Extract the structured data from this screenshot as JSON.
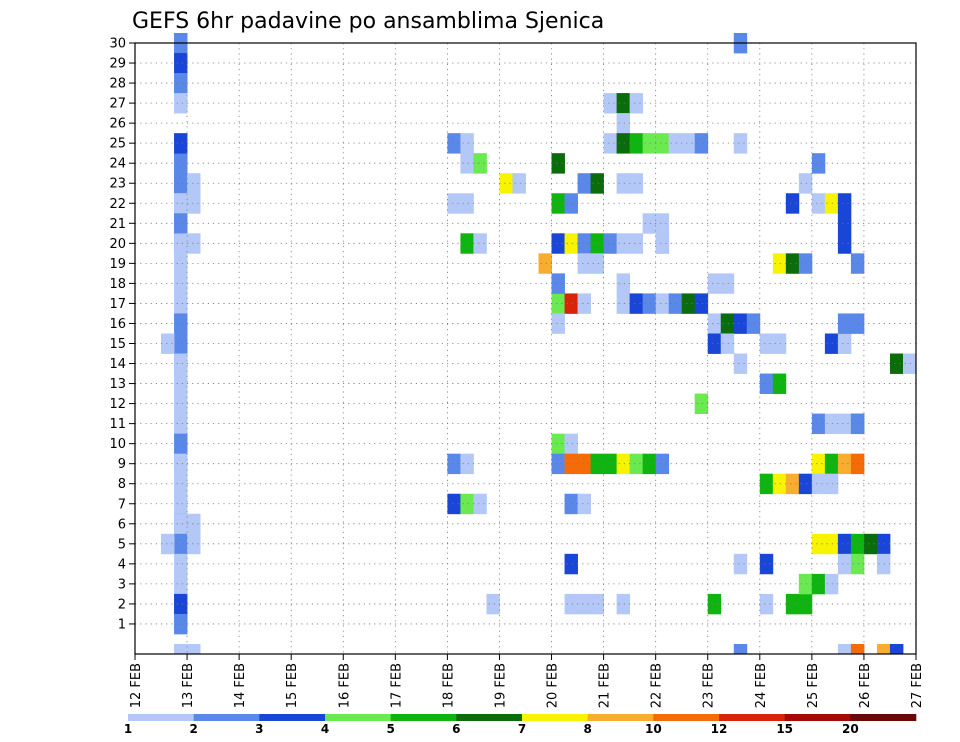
{
  "chart_data": {
    "type": "heatmap",
    "title": "GEFS 6hr padavine po ansamblima Sjenica",
    "xlabel": "",
    "ylabel": "",
    "x_ticks": [
      "12 FEB",
      "13 FEB",
      "14 FEB",
      "15 FEB",
      "16 FEB",
      "17 FEB",
      "18 FEB",
      "19 FEB",
      "20 FEB",
      "21 FEB",
      "22 FEB",
      "23 FEB",
      "24 FEB",
      "25 FEB",
      "26 FEB",
      "27 FEB"
    ],
    "y_ticks": [
      "1",
      "2",
      "3",
      "4",
      "5",
      "6",
      "7",
      "8",
      "9",
      "10",
      "11",
      "12",
      "13",
      "14",
      "15",
      "16",
      "17",
      "18",
      "19",
      "20",
      "21",
      "22",
      "23",
      "24",
      "25",
      "26",
      "27",
      "28",
      "29",
      "30"
    ],
    "time_steps_per_day": 4,
    "grid": true,
    "legend_placement": "bottom",
    "legend": {
      "levels": [
        "1",
        "2",
        "3",
        "4",
        "5",
        "6",
        "7",
        "8",
        "10",
        "12",
        "15",
        "20"
      ],
      "colors": [
        "#b4c8f8",
        "#5a88e8",
        "#1a46d8",
        "#6aea50",
        "#10b410",
        "#0a6c0a",
        "#f8f400",
        "#f8ac30",
        "#f46c08",
        "#d82408",
        "#a40808",
        "#6a0808"
      ]
    },
    "cells": [
      [
        30,
        0,
        3,
        1
      ],
      [
        30,
        0,
        3,
        2
      ],
      [
        24,
        0,
        3,
        1
      ],
      [
        24,
        0,
        3,
        2
      ],
      [
        23,
        0,
        3,
        2
      ],
      [
        23,
        0,
        3,
        2
      ],
      [
        22,
        0,
        3,
        1
      ],
      [
        22,
        0,
        3,
        1
      ],
      [
        21,
        0,
        3,
        1
      ],
      [
        21,
        0,
        3,
        2
      ],
      [
        20,
        0,
        3,
        3
      ],
      [
        20,
        0,
        3,
        1
      ],
      [
        19,
        0,
        3,
        1
      ],
      [
        18,
        0,
        3,
        1
      ],
      [
        17,
        0,
        3,
        1
      ],
      [
        16,
        0,
        3,
        2
      ],
      [
        15,
        0,
        3,
        1
      ],
      [
        15,
        0,
        3,
        2
      ],
      [
        14,
        0,
        3,
        2
      ],
      [
        14,
        0,
        3,
        1
      ],
      [
        13,
        0,
        3,
        1
      ],
      [
        12,
        0,
        3,
        1
      ],
      [
        11,
        0,
        3,
        1
      ],
      [
        10,
        0,
        3,
        2
      ],
      [
        9,
        0,
        3,
        2
      ],
      [
        9,
        0,
        3,
        1
      ],
      [
        8,
        0,
        3,
        1
      ],
      [
        7,
        0,
        3,
        1
      ],
      [
        6,
        0,
        3,
        2
      ],
      [
        6,
        0,
        3,
        1
      ],
      [
        5,
        0,
        3,
        2
      ],
      [
        4,
        0,
        3,
        1
      ],
      [
        3,
        0,
        3,
        1
      ],
      [
        2,
        0,
        3,
        3
      ],
      [
        1,
        0,
        3,
        2
      ],
      [
        0,
        0,
        3,
        1
      ],
      [
        29,
        0,
        3,
        3
      ],
      [
        28,
        0,
        3,
        2
      ],
      [
        27,
        0,
        3,
        1
      ],
      [
        25,
        0,
        3,
        3
      ],
      [
        5,
        0,
        2,
        1
      ],
      [
        15,
        0,
        2,
        1
      ],
      [
        6,
        0,
        4,
        1
      ],
      [
        5,
        0,
        4,
        1
      ],
      [
        23,
        0,
        4,
        1
      ],
      [
        22,
        0,
        4,
        1
      ],
      [
        20,
        0,
        4,
        1
      ],
      [
        0,
        0,
        4,
        1
      ],
      [
        25,
        6,
        0,
        2
      ],
      [
        25,
        6,
        1,
        1
      ],
      [
        24,
        6,
        1,
        1
      ],
      [
        24,
        6,
        2,
        4
      ],
      [
        23,
        7,
        0,
        7
      ],
      [
        23,
        7,
        1,
        1
      ],
      [
        22,
        6,
        0,
        1
      ],
      [
        22,
        6,
        1,
        1
      ],
      [
        20,
        6,
        1,
        5
      ],
      [
        20,
        6,
        2,
        1
      ],
      [
        9,
        6,
        0,
        2
      ],
      [
        9,
        6,
        1,
        1
      ],
      [
        7,
        6,
        0,
        3
      ],
      [
        7,
        6,
        1,
        4
      ],
      [
        7,
        6,
        2,
        1
      ],
      [
        2,
        6,
        3,
        1
      ],
      [
        24,
        8,
        0,
        6
      ],
      [
        22,
        8,
        0,
        5
      ],
      [
        22,
        8,
        1,
        2
      ],
      [
        20,
        8,
        0,
        3
      ],
      [
        20,
        8,
        1,
        7
      ],
      [
        20,
        8,
        2,
        2
      ],
      [
        20,
        8,
        3,
        5
      ],
      [
        23,
        8,
        2,
        2
      ],
      [
        23,
        8,
        3,
        6
      ],
      [
        19,
        7,
        3,
        8
      ],
      [
        17,
        8,
        0,
        4
      ],
      [
        17,
        8,
        1,
        10
      ],
      [
        17,
        8,
        2,
        1
      ],
      [
        18,
        8,
        0,
        2
      ],
      [
        16,
        8,
        0,
        1
      ],
      [
        10,
        8,
        0,
        4
      ],
      [
        10,
        8,
        1,
        1
      ],
      [
        9,
        8,
        0,
        2
      ],
      [
        9,
        8,
        1,
        9
      ],
      [
        9,
        8,
        2,
        9
      ],
      [
        9,
        8,
        3,
        5
      ],
      [
        7,
        8,
        1,
        2
      ],
      [
        7,
        8,
        2,
        1
      ],
      [
        4,
        8,
        1,
        3
      ],
      [
        2,
        8,
        1,
        1
      ],
      [
        2,
        8,
        2,
        1
      ],
      [
        2,
        8,
        3,
        1
      ],
      [
        27,
        9,
        0,
        1
      ],
      [
        27,
        9,
        1,
        6
      ],
      [
        27,
        9,
        2,
        1
      ],
      [
        26,
        9,
        1,
        1
      ],
      [
        25,
        9,
        0,
        1
      ],
      [
        25,
        9,
        1,
        6
      ],
      [
        25,
        9,
        2,
        5
      ],
      [
        25,
        9,
        3,
        4
      ],
      [
        23,
        9,
        1,
        1
      ],
      [
        23,
        9,
        2,
        1
      ],
      [
        21,
        9,
        3,
        1
      ],
      [
        20,
        9,
        0,
        2
      ],
      [
        20,
        9,
        1,
        1
      ],
      [
        20,
        9,
        2,
        1
      ],
      [
        18,
        9,
        1,
        1
      ],
      [
        17,
        9,
        1,
        1
      ],
      [
        17,
        9,
        2,
        3
      ],
      [
        17,
        9,
        3,
        2
      ],
      [
        9,
        9,
        0,
        5
      ],
      [
        9,
        9,
        1,
        7
      ],
      [
        9,
        9,
        2,
        4
      ],
      [
        9,
        9,
        3,
        5
      ],
      [
        2,
        9,
        1,
        1
      ],
      [
        19,
        8,
        2,
        1
      ],
      [
        19,
        8,
        3,
        1
      ],
      [
        20,
        10,
        0,
        1
      ],
      [
        25,
        10,
        0,
        4
      ],
      [
        25,
        10,
        1,
        1
      ],
      [
        25,
        10,
        2,
        1
      ],
      [
        25,
        10,
        3,
        2
      ],
      [
        17,
        10,
        0,
        1
      ],
      [
        17,
        10,
        1,
        2
      ],
      [
        17,
        10,
        2,
        6
      ],
      [
        17,
        10,
        3,
        3
      ],
      [
        16,
        11,
        0,
        1
      ],
      [
        16,
        11,
        1,
        6
      ],
      [
        16,
        11,
        2,
        3
      ],
      [
        16,
        11,
        3,
        2
      ],
      [
        15,
        11,
        0,
        3
      ],
      [
        15,
        11,
        1,
        1
      ],
      [
        18,
        11,
        0,
        1
      ],
      [
        18,
        11,
        1,
        1
      ],
      [
        14,
        11,
        2,
        1
      ],
      [
        12,
        10,
        3,
        4
      ],
      [
        9,
        10,
        0,
        2
      ],
      [
        2,
        11,
        0,
        5
      ],
      [
        20,
        10,
        0,
        1
      ],
      [
        21,
        10,
        0,
        1
      ],
      [
        30,
        11,
        2,
        2
      ],
      [
        25,
        11,
        2,
        1
      ],
      [
        15,
        12,
        0,
        1
      ],
      [
        15,
        12,
        1,
        1
      ],
      [
        4,
        11,
        2,
        1
      ],
      [
        0,
        11,
        2,
        2
      ],
      [
        2,
        12,
        0,
        1
      ],
      [
        4,
        12,
        0,
        3
      ],
      [
        13,
        12,
        0,
        2
      ],
      [
        13,
        12,
        1,
        5
      ],
      [
        8,
        12,
        0,
        5
      ],
      [
        8,
        12,
        1,
        7
      ],
      [
        8,
        12,
        2,
        8
      ],
      [
        8,
        12,
        3,
        3
      ],
      [
        19,
        12,
        1,
        7
      ],
      [
        19,
        12,
        2,
        6
      ],
      [
        19,
        12,
        3,
        2
      ],
      [
        22,
        12,
        2,
        3
      ],
      [
        2,
        12,
        2,
        5
      ],
      [
        2,
        12,
        3,
        5
      ],
      [
        3,
        12,
        3,
        4
      ],
      [
        3,
        13,
        0,
        5
      ],
      [
        23,
        12,
        3,
        1
      ],
      [
        24,
        13,
        0,
        2
      ],
      [
        22,
        13,
        0,
        1
      ],
      [
        22,
        13,
        1,
        7
      ],
      [
        22,
        13,
        2,
        3
      ],
      [
        21,
        13,
        2,
        3
      ],
      [
        20,
        13,
        2,
        3
      ],
      [
        15,
        13,
        1,
        3
      ],
      [
        15,
        13,
        2,
        1
      ],
      [
        16,
        13,
        2,
        2
      ],
      [
        16,
        13,
        3,
        2
      ],
      [
        19,
        13,
        3,
        2
      ],
      [
        11,
        13,
        0,
        2
      ],
      [
        11,
        13,
        1,
        1
      ],
      [
        11,
        13,
        2,
        1
      ],
      [
        11,
        13,
        3,
        5
      ],
      [
        11,
        13,
        3,
        2
      ],
      [
        9,
        13,
        0,
        7
      ],
      [
        9,
        13,
        1,
        5
      ],
      [
        9,
        13,
        2,
        8
      ],
      [
        9,
        13,
        3,
        9
      ],
      [
        8,
        13,
        0,
        1
      ],
      [
        8,
        13,
        1,
        1
      ],
      [
        5,
        13,
        0,
        7
      ],
      [
        5,
        13,
        1,
        7
      ],
      [
        5,
        13,
        2,
        3
      ],
      [
        5,
        13,
        3,
        5
      ],
      [
        4,
        13,
        2,
        1
      ],
      [
        4,
        13,
        3,
        4
      ],
      [
        3,
        13,
        1,
        1
      ],
      [
        0,
        13,
        2,
        1
      ],
      [
        0,
        13,
        3,
        9
      ],
      [
        14,
        14,
        2,
        6
      ],
      [
        14,
        14,
        3,
        1
      ],
      [
        5,
        14,
        0,
        6
      ],
      [
        5,
        14,
        1,
        3
      ],
      [
        4,
        14,
        1,
        1
      ],
      [
        0,
        14,
        1,
        8
      ],
      [
        0,
        14,
        2,
        3
      ]
    ]
  }
}
